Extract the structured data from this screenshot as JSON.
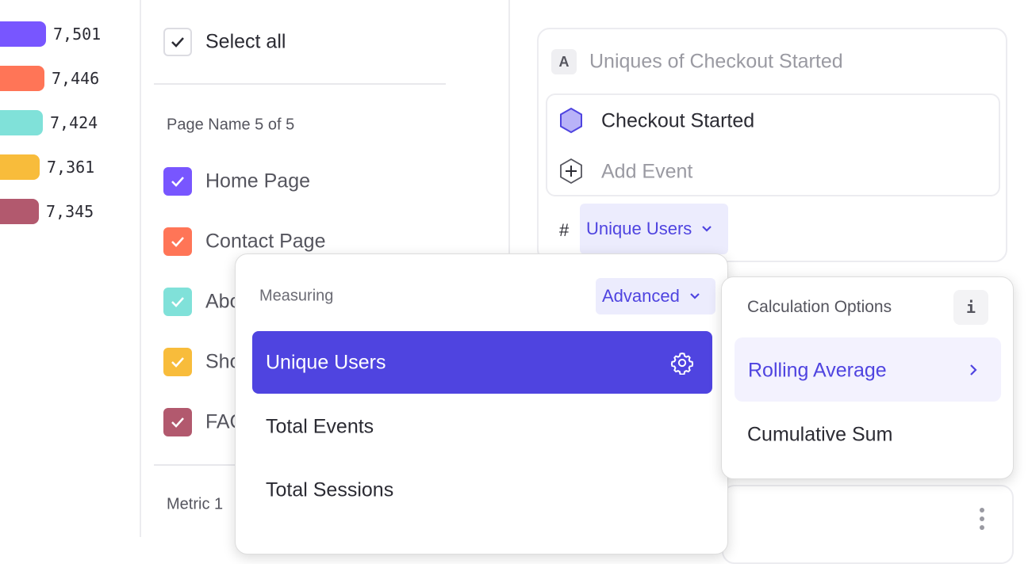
{
  "legend_bars": [
    {
      "value": "7,501",
      "color": "#7856ff"
    },
    {
      "value": "7,446",
      "color": "#ff7557"
    },
    {
      "value": "7,424",
      "color": "#80e1d9"
    },
    {
      "value": "7,361",
      "color": "#f8bc3b"
    },
    {
      "value": "7,345",
      "color": "#b2596e"
    }
  ],
  "filter": {
    "select_all": "Select all",
    "group_title": "Page Name 5 of 5",
    "items": [
      {
        "label": "Home Page",
        "color": "#7856ff",
        "checked": true
      },
      {
        "label": "Contact Page",
        "color": "#ff7557",
        "checked": true
      },
      {
        "label": "Abo",
        "color": "#80e1d9",
        "checked": true
      },
      {
        "label": "Sho",
        "color": "#f8bc3b",
        "checked": true
      },
      {
        "label": "FAQ",
        "color": "#b2596e",
        "checked": true
      }
    ],
    "metric_label": "Metric 1"
  },
  "metric_card": {
    "badge": "A",
    "title": "Uniques of Checkout Started",
    "event": "Checkout Started",
    "add_event": "Add Event",
    "hash": "#",
    "measure_button": "Unique Users"
  },
  "measuring_menu": {
    "title": "Measuring",
    "mode": "Advanced",
    "options": [
      "Unique Users",
      "Total Events",
      "Total Sessions"
    ],
    "selected": "Unique Users"
  },
  "calc_menu": {
    "title": "Calculation Options",
    "info": "i",
    "options": [
      "Rolling Average",
      "Cumulative Sum"
    ],
    "highlighted": "Rolling Average"
  },
  "colors": {
    "accent": "#4f44e0",
    "accent_light": "#ececfd"
  }
}
